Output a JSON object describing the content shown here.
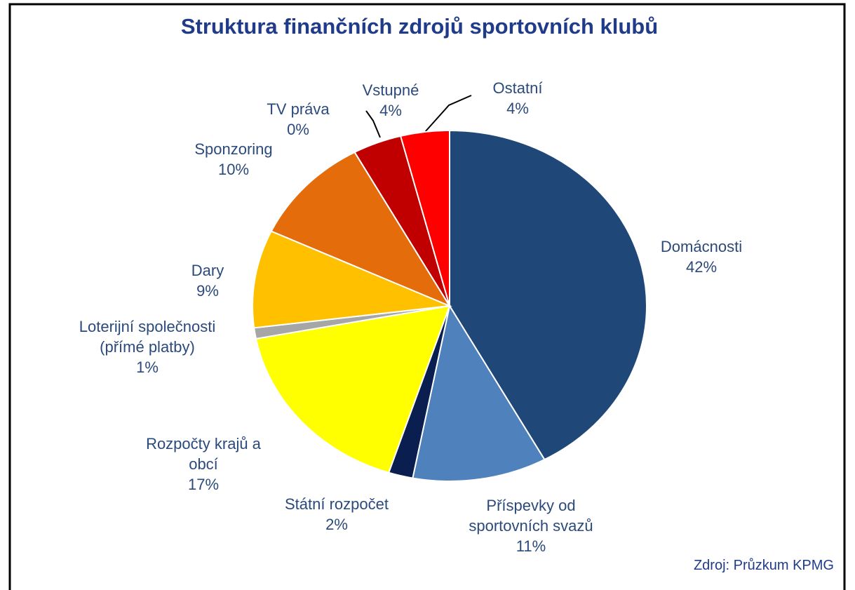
{
  "chart_data": {
    "type": "pie",
    "title": "Struktura finančních zdrojů sportovních klubů",
    "source": "Zdroj: Průzkum KPMG",
    "categories": [
      "Domácnosti",
      "Příspevky od\nsportovních svazů",
      "Státní rozpočet",
      "Rozpočty krajů a\nobcí",
      "Loterijní společnosti\n(přímé platby)",
      "Dary",
      "Sponzoring",
      "TV práva",
      "Vstupné",
      "Ostatní"
    ],
    "values": [
      42,
      11,
      2,
      17,
      1,
      9,
      10,
      0,
      4,
      4
    ],
    "value_labels": [
      "42%",
      "11%",
      "2%",
      "17%",
      "1%",
      "9%",
      "10%",
      "0%",
      "4%",
      "4%"
    ],
    "colors": [
      "#1f4778",
      "#4f81bd",
      "#0a1f4f",
      "#ffff00",
      "#a6a6a6",
      "#ffc000",
      "#e46c0a",
      "#c0504d",
      "#c00000",
      "#ff0000"
    ]
  }
}
